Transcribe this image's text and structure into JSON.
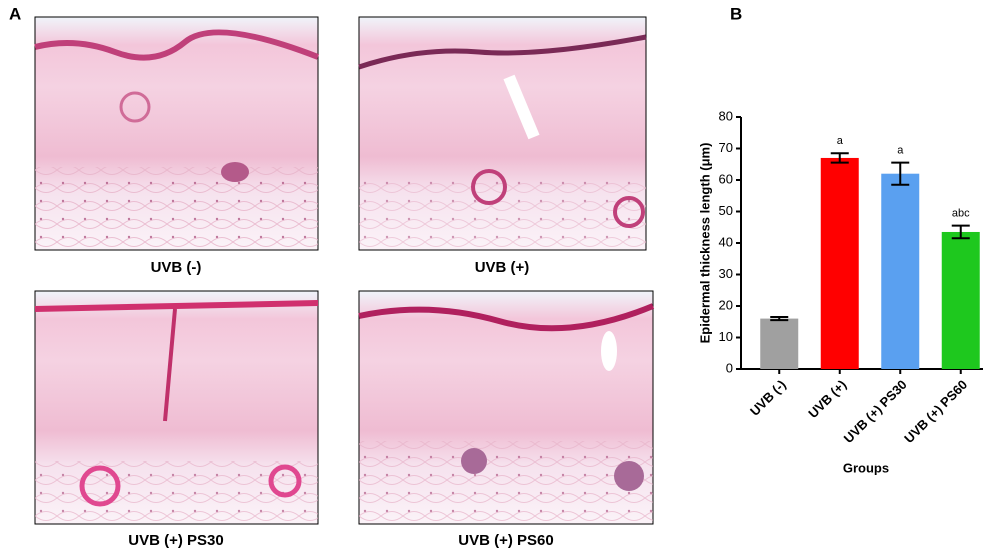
{
  "panels": {
    "a": "A",
    "b": "B"
  },
  "images": [
    {
      "caption": "UVB (-)"
    },
    {
      "caption": "UVB (+)"
    },
    {
      "caption": "UVB (+) PS30"
    },
    {
      "caption": "UVB (+) PS60"
    }
  ],
  "chart_data": {
    "type": "bar",
    "categories": [
      "UVB (-)",
      "UVB (+)",
      "UVB (+) PS30",
      "UVB (+) PS60"
    ],
    "values": [
      16,
      67,
      62,
      43.5
    ],
    "errors": [
      0.5,
      1.5,
      3.5,
      2
    ],
    "annotations": [
      null,
      "a",
      "a",
      "abc"
    ],
    "colors": [
      "#a0a0a0",
      "#ff0000",
      "#5aa0f0",
      "#1ec81e"
    ],
    "ylim": [
      0,
      80
    ],
    "yticks": [
      0,
      10,
      20,
      30,
      40,
      50,
      60,
      70,
      80
    ],
    "ylabel": "Epidermal thickness length (μm)",
    "xlabel": "Groups"
  }
}
